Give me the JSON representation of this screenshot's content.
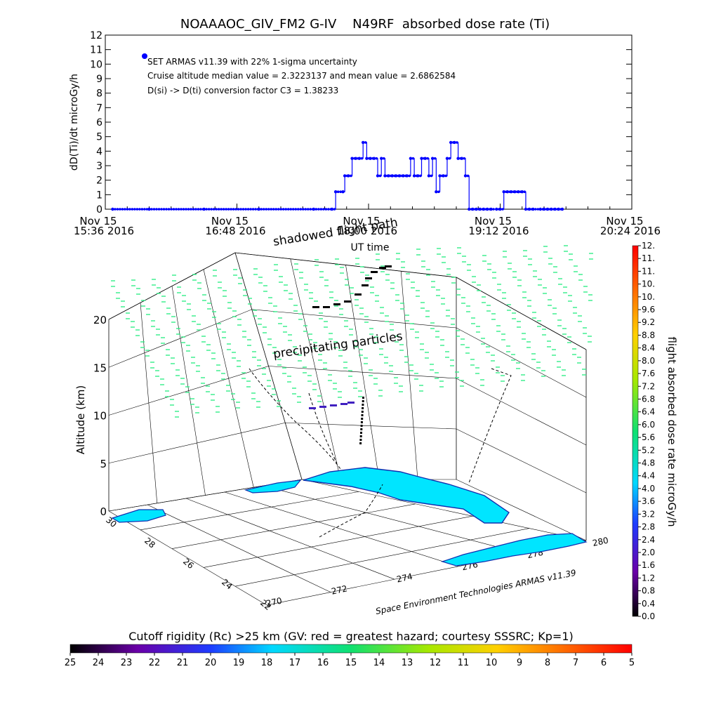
{
  "top_chart": {
    "title": "NOAAAOC_GIV_FM2 G-IV    N49RF  absorbed dose rate (Ti)",
    "ylabel": "dD(Ti)/dt microGy/h",
    "xlabel": "UT time",
    "legend_lines": [
      "SET ARMAS v11.39 with 22% 1-sigma uncertainty",
      "Cruise altitude median value = 2.3223137 and mean value = 2.6862584",
      "D(si) -> D(ti) conversion factor C3 = 1.38233"
    ],
    "ytick_labels": [
      "0",
      "1",
      "2",
      "3",
      "4",
      "5",
      "6",
      "7",
      "8",
      "9",
      "10",
      "11",
      "12"
    ],
    "xtick_labels": [
      [
        "Nov 15",
        "15:36 2016"
      ],
      [
        "Nov 15",
        "16:48 2016"
      ],
      [
        "Nov 15",
        "18:00 2016"
      ],
      [
        "Nov 15",
        "19:12 2016"
      ],
      [
        "Nov 15",
        "20:24 2016"
      ]
    ]
  },
  "chart_data": [
    {
      "type": "line",
      "title": "NOAAAOC_GIV_FM2 G-IV    N49RF  absorbed dose rate (Ti)",
      "xlabel": "UT time",
      "ylabel": "dD(Ti)/dt microGy/h",
      "xlim": [
        "15:36",
        "20:24"
      ],
      "ylim": [
        0,
        12
      ],
      "series": [
        {
          "name": "SET ARMAS v11.39 with 22% 1-sigma uncertainty",
          "color": "#0000ff",
          "x": [
            "15:40",
            "16:00",
            "16:30",
            "17:00",
            "17:30",
            "17:40",
            "17:42",
            "17:46",
            "17:47",
            "17:49",
            "17:51",
            "17:53",
            "17:55",
            "17:57",
            "17:59",
            "18:01",
            "18:03",
            "18:05",
            "18:07",
            "18:09",
            "18:11",
            "18:13",
            "18:15",
            "18:17",
            "18:19",
            "18:21",
            "18:23",
            "18:25",
            "18:27",
            "18:29",
            "18:31",
            "18:33",
            "18:35",
            "18:37",
            "18:39",
            "18:41",
            "18:43",
            "18:45",
            "18:47",
            "18:49",
            "18:51",
            "18:53",
            "18:55",
            "18:57",
            "18:59",
            "19:01",
            "19:03",
            "19:05",
            "19:07",
            "19:10",
            "19:12",
            "19:14",
            "19:16",
            "19:18",
            "19:20",
            "19:22",
            "19:24",
            "19:26",
            "19:28",
            "19:30",
            "19:34",
            "19:36",
            "19:38",
            "19:40",
            "19:42",
            "19:44",
            "19:46"
          ],
          "values": [
            0,
            0,
            0,
            0,
            0,
            0,
            1.2,
            1.2,
            2.3,
            2.3,
            3.5,
            3.5,
            3.5,
            4.6,
            3.5,
            3.5,
            3.5,
            2.3,
            3.5,
            2.3,
            2.3,
            2.3,
            2.3,
            2.3,
            2.3,
            2.3,
            3.5,
            2.3,
            2.3,
            3.5,
            3.5,
            2.3,
            3.5,
            1.2,
            2.3,
            2.3,
            3.5,
            4.6,
            4.6,
            3.5,
            3.5,
            2.3,
            0,
            0,
            0,
            0,
            0,
            0,
            0,
            0,
            0,
            1.2,
            1.2,
            1.2,
            1.2,
            1.2,
            1.2,
            0,
            0,
            0,
            0,
            0,
            0,
            0,
            0,
            0,
            0
          ]
        }
      ],
      "annotations": [
        "Cruise altitude median value = 2.3223137 and mean value = 2.6862584",
        "D(si) -> D(ti) conversion factor C3 = 1.38233"
      ]
    },
    {
      "type": "scatter",
      "subtype": "3d-flight-path",
      "zlabel": "Altitude (km)",
      "zlim": [
        0,
        20
      ],
      "ztick_labels": [
        "0",
        "5",
        "10",
        "15",
        "20"
      ],
      "lat_ticks": [
        "30",
        "28",
        "26",
        "24",
        "22"
      ],
      "lon_ticks": [
        "270",
        "272",
        "274",
        "276",
        "278",
        "280"
      ],
      "annotations": [
        "shadowed flight path",
        "precipitating particles"
      ],
      "credit": "Space Environment Technologies ARMAS v11.39",
      "colorbar": {
        "label": "flight absorbed dose rate microGy/h",
        "range": [
          0,
          12.4
        ],
        "tick_labels": [
          "0.0",
          "0.4",
          "0.8",
          "1.2",
          "1.6",
          "2.0",
          "2.4",
          "2.8",
          "3.2",
          "3.6",
          "4.0",
          "4.4",
          "4.8",
          "5.2",
          "5.6",
          "6.0",
          "6.4",
          "6.8",
          "7.2",
          "7.6",
          "8.0",
          "8.4",
          "8.8",
          "9.2",
          "9.6",
          "10.",
          "10.",
          "11.",
          "11.",
          "12."
        ]
      }
    }
  ],
  "bottom_colorbar": {
    "title": "Cutoff rigidity (Rc) >25 km (GV: red = greatest hazard; courtesy SSSRC; Kp=1)",
    "tick_labels": [
      "25",
      "24",
      "23",
      "22",
      "21",
      "20",
      "19",
      "18",
      "17",
      "16",
      "15",
      "14",
      "13",
      "12",
      "11",
      "10",
      "9",
      "8",
      "7",
      "6",
      "5"
    ]
  },
  "colors": {
    "series": "#0000ff",
    "land": "#00e5ff",
    "particles": "#33ee88",
    "frame": "#000000"
  }
}
